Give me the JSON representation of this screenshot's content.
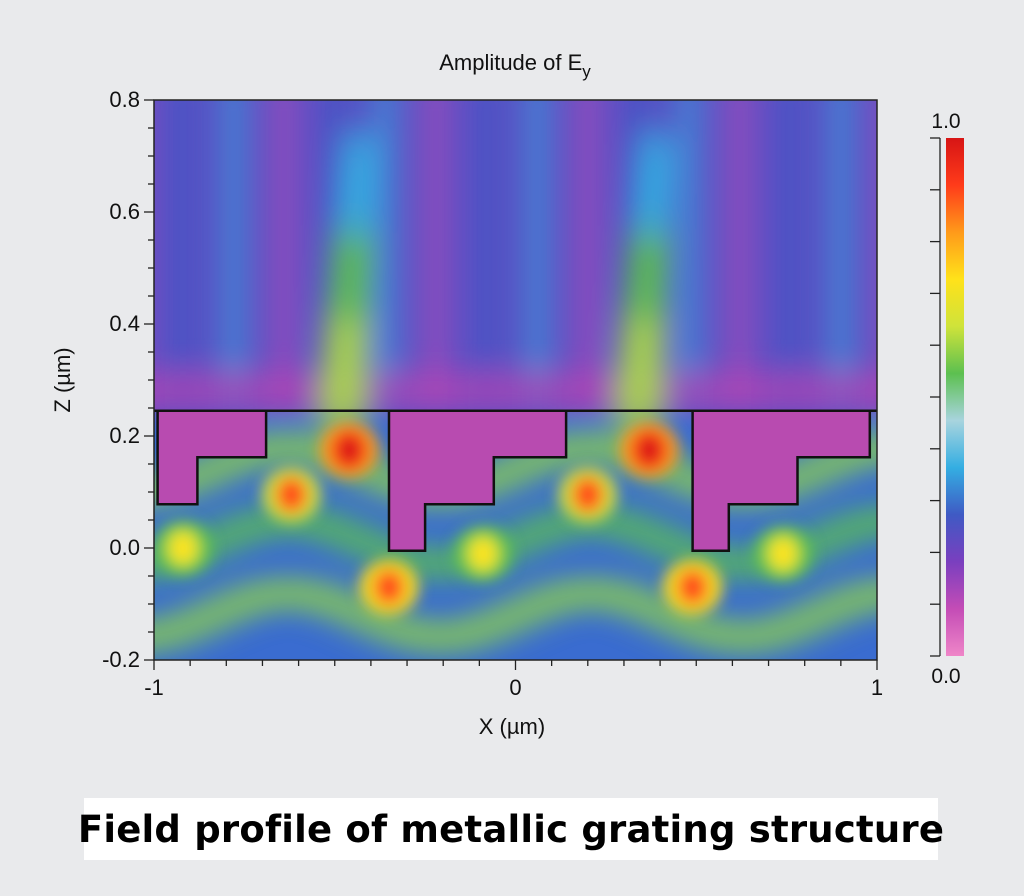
{
  "chart_data": {
    "type": "heatmap",
    "title_main": "Amplitude of E",
    "title_subscript": "y",
    "xlabel": "X (µm)",
    "ylabel": "Z (µm)",
    "xlim": [
      -1,
      1
    ],
    "ylim": [
      -0.2,
      0.8
    ],
    "x_ticks": [
      {
        "value": -1,
        "label": "-1"
      },
      {
        "value": 0,
        "label": "0"
      },
      {
        "value": 1,
        "label": "1"
      }
    ],
    "y_ticks": [
      {
        "value": -0.2,
        "label": "-0.2"
      },
      {
        "value": 0.0,
        "label": "0.0"
      },
      {
        "value": 0.2,
        "label": "0.2"
      },
      {
        "value": 0.4,
        "label": "0.4"
      },
      {
        "value": 0.6,
        "label": "0.6"
      },
      {
        "value": 0.8,
        "label": "0.8"
      }
    ],
    "colorbar": {
      "min": 0.0,
      "max": 1.0,
      "min_label": "0.0",
      "max_label": "1.0",
      "colormap": [
        "#ef86c8",
        "#c44cb6",
        "#7a3fbf",
        "#3f5ac4",
        "#34aee2",
        "#a8d4de",
        "#5cc050",
        "#cfe33a",
        "#ffe21a",
        "#ff9a1a",
        "#ff3b1a",
        "#d71515"
      ]
    },
    "grating_period_um": 0.84,
    "grating_outlines": [
      [
        [
          -0.99,
          0.245
        ],
        [
          -0.69,
          0.245
        ],
        [
          -0.69,
          0.162
        ],
        [
          -0.88,
          0.162
        ],
        [
          -0.88,
          0.078
        ],
        [
          -0.99,
          0.078
        ]
      ],
      [
        [
          -0.35,
          0.245
        ],
        [
          0.14,
          0.245
        ],
        [
          0.14,
          0.162
        ],
        [
          -0.06,
          0.162
        ],
        [
          -0.06,
          0.078
        ],
        [
          -0.25,
          0.078
        ],
        [
          -0.25,
          -0.005
        ],
        [
          -0.35,
          -0.005
        ]
      ],
      [
        [
          0.49,
          0.245
        ],
        [
          0.98,
          0.245
        ],
        [
          0.98,
          0.162
        ],
        [
          0.78,
          0.162
        ],
        [
          0.78,
          0.078
        ],
        [
          0.59,
          0.078
        ],
        [
          0.59,
          -0.005
        ],
        [
          0.49,
          -0.005
        ]
      ]
    ],
    "interface_z_um": 0.245,
    "hotspots": [
      {
        "x": -0.46,
        "z": 0.175,
        "amplitude": 0.98
      },
      {
        "x": -0.62,
        "z": 0.095,
        "amplitude": 0.88
      },
      {
        "x": -0.35,
        "z": -0.07,
        "amplitude": 0.9
      },
      {
        "x": 0.37,
        "z": 0.175,
        "amplitude": 0.98
      },
      {
        "x": 0.2,
        "z": 0.095,
        "amplitude": 0.88
      },
      {
        "x": 0.49,
        "z": -0.07,
        "amplitude": 0.9
      },
      {
        "x": -0.92,
        "z": 0.0,
        "amplitude": 0.72
      },
      {
        "x": -0.09,
        "z": -0.01,
        "amplitude": 0.72
      },
      {
        "x": 0.74,
        "z": -0.01,
        "amplitude": 0.72
      }
    ],
    "plumes": [
      {
        "x": -0.48,
        "z_from": 0.25,
        "z_to": 0.72,
        "amplitude": 0.55
      },
      {
        "x": 0.34,
        "z_from": 0.25,
        "z_to": 0.72,
        "amplitude": 0.55
      }
    ],
    "grid": false
  },
  "caption": "Field profile of metallic grating structure"
}
